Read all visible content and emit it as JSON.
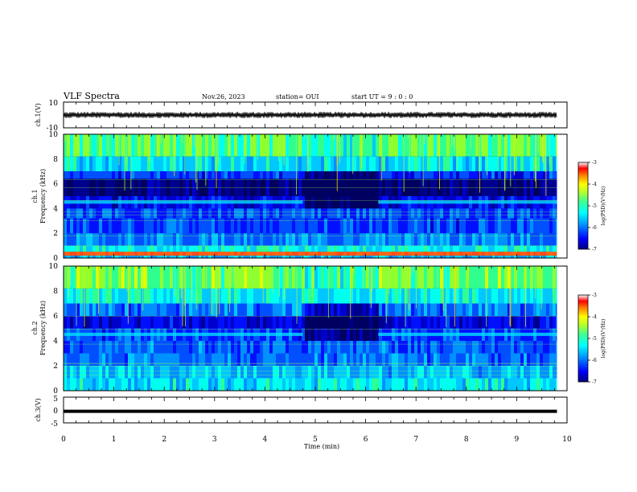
{
  "header": {
    "title": "VLF Spectra",
    "date": "Nov.26, 2023",
    "station": "station= OUI",
    "start": "start UT =  9 : 0 : 0"
  },
  "colors": {
    "ink": "#000000",
    "gridline_green": "#9cff4a"
  },
  "chart_data": [
    {
      "type": "line",
      "name": "ch1-waveform",
      "ylabel": "ch.1(V)",
      "ylim": [
        -10,
        10
      ],
      "ytick_labels": [
        "10",
        "-10"
      ],
      "x": [
        0,
        0.5,
        1,
        1.5,
        2,
        2.5,
        3,
        3.5,
        4,
        4.5,
        5,
        5.5,
        6,
        6.2,
        6.5,
        7,
        7.5,
        8,
        8.5,
        9,
        9.5,
        9.8
      ],
      "y_mean": [
        0,
        0,
        0,
        0,
        0,
        0,
        0,
        0,
        0,
        0,
        0,
        0,
        0,
        0,
        0,
        0,
        0,
        0,
        0,
        0,
        0,
        0
      ],
      "envelope_amplitude": 2
    },
    {
      "type": "heatmap",
      "name": "ch1-spectrogram",
      "ylabel": "ch.1\nFrequency (kHz)",
      "ylim": [
        0,
        10
      ],
      "ytick_labels": [
        "0",
        "2",
        "4",
        "6",
        "8",
        "10"
      ],
      "xlim": [
        0,
        10
      ],
      "data_end_min": 9.8,
      "colorbar": {
        "label": "log(PSD)(V²/Hz)",
        "range": [
          -7,
          -3
        ],
        "tick_labels": [
          "-3",
          "-4",
          "-5",
          "-6",
          "-7"
        ]
      },
      "features": {
        "band_4_5kHz_gap_min": [
          4.75,
          6.25
        ],
        "strong_band_below_1kHz": true
      }
    },
    {
      "type": "heatmap",
      "name": "ch2-spectrogram",
      "ylabel": "ch.2\nFrequency (kHz)",
      "ylim": [
        0,
        10
      ],
      "ytick_labels": [
        "0",
        "2",
        "4",
        "6",
        "8",
        "10"
      ],
      "xlim": [
        0,
        10
      ],
      "data_end_min": 9.8,
      "colorbar": {
        "label": "log(PSD)(V²/Hz)",
        "range": [
          -7,
          -3
        ],
        "tick_labels": [
          "-3",
          "-4",
          "-5",
          "-6",
          "-7"
        ]
      },
      "features": {
        "band_4_5kHz_gap_min": [
          4.75,
          6.25
        ]
      }
    },
    {
      "type": "line",
      "name": "ch3-waveform",
      "ylabel": "ch.3(V)",
      "ylim": [
        -5,
        5
      ],
      "ytick_labels": [
        "5",
        "0",
        "-5"
      ],
      "x": [
        0,
        9.8
      ],
      "y": [
        -0.5,
        -0.5
      ]
    }
  ],
  "xaxis": {
    "label": "Time (min)",
    "tick_labels": [
      "0",
      "1",
      "2",
      "3",
      "4",
      "5",
      "6",
      "7",
      "8",
      "9",
      "10"
    ]
  }
}
